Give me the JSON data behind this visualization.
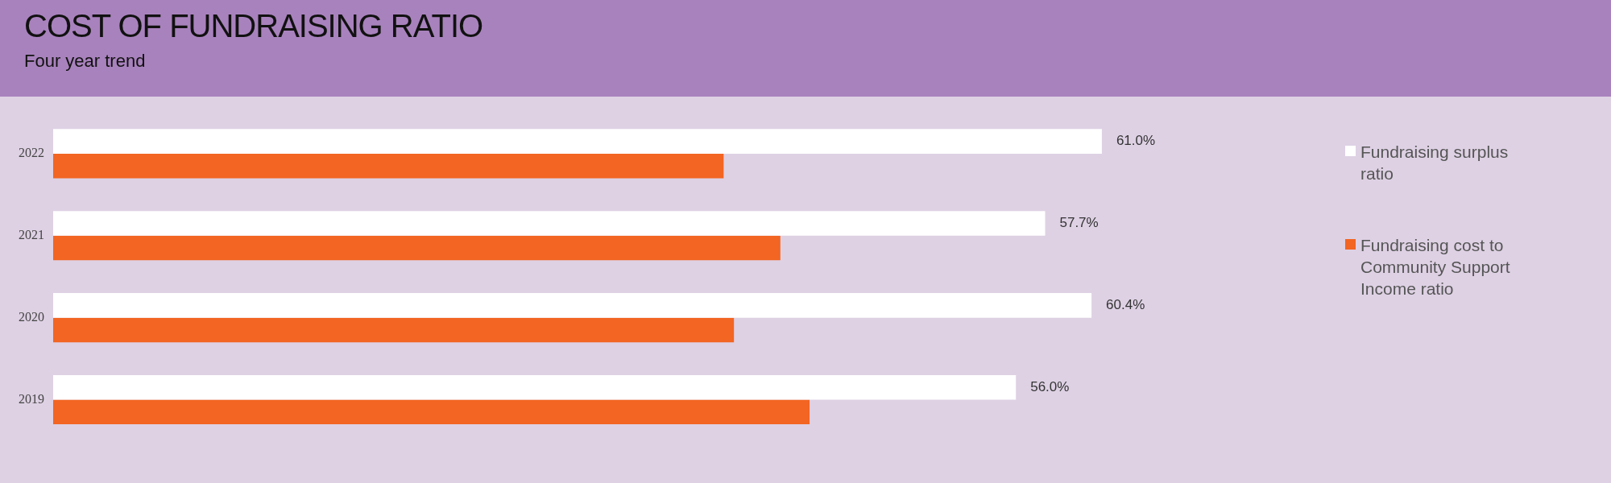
{
  "chart_data": {
    "type": "bar",
    "orientation": "horizontal",
    "title": "COST OF FUNDRAISING RATIO",
    "subtitle": "Four year trend",
    "categories": [
      "2022",
      "2021",
      "2020",
      "2019"
    ],
    "legend": "right",
    "series": [
      {
        "name": "Fundraising surplus ratio",
        "color": "#ffffff",
        "values": [
          61.0,
          57.7,
          60.4,
          56.0
        ],
        "value_labels": [
          "61.0%",
          "57.7%",
          "60.4%",
          "56.0%"
        ]
      },
      {
        "name": "Fundraising cost to Community Support Income ratio",
        "color": "#f26522",
        "values": [
          39.0,
          42.3,
          39.6,
          44.0
        ]
      }
    ]
  }
}
